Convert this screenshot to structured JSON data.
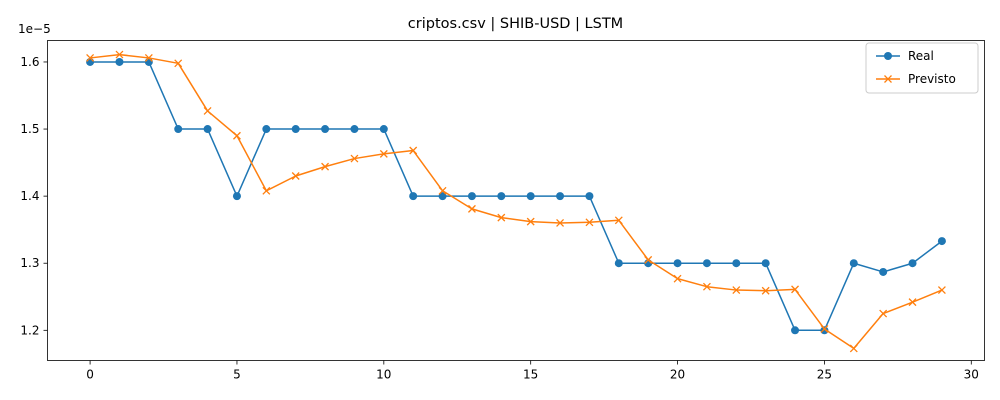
{
  "chart_data": {
    "type": "line",
    "title": "criptos.csv | SHIB-USD | LSTM",
    "xlabel": "",
    "ylabel": "",
    "y_offset_label": "1e−5",
    "xlim": [
      -1.45,
      30.45
    ],
    "ylim": [
      1.155,
      1.632
    ],
    "x_ticks": [
      0,
      5,
      10,
      15,
      20,
      25,
      30
    ],
    "y_ticks": [
      1.2,
      1.3,
      1.4,
      1.5,
      1.6
    ],
    "y_tick_labels": [
      "1.2",
      "1.3",
      "1.4",
      "1.5",
      "1.6"
    ],
    "grid": false,
    "legend_position": "top-right",
    "x": [
      0,
      1,
      2,
      3,
      4,
      5,
      6,
      7,
      8,
      9,
      10,
      11,
      12,
      13,
      14,
      15,
      16,
      17,
      18,
      19,
      20,
      21,
      22,
      23,
      24,
      25,
      26,
      27,
      28,
      29
    ],
    "series": [
      {
        "name": "Real",
        "color": "#1f77b4",
        "marker": "circle",
        "values": [
          1.6,
          1.6,
          1.6,
          1.5,
          1.5,
          1.4,
          1.5,
          1.5,
          1.5,
          1.5,
          1.5,
          1.4,
          1.4,
          1.4,
          1.4,
          1.4,
          1.4,
          1.4,
          1.3,
          1.3,
          1.3,
          1.3,
          1.3,
          1.3,
          1.2,
          1.2,
          1.3,
          1.287,
          1.3,
          1.333
        ]
      },
      {
        "name": "Previsto",
        "color": "#ff7f0e",
        "marker": "x",
        "values": [
          1.606,
          1.611,
          1.606,
          1.598,
          1.527,
          1.49,
          1.408,
          1.43,
          1.444,
          1.456,
          1.463,
          1.468,
          1.408,
          1.381,
          1.368,
          1.362,
          1.36,
          1.361,
          1.364,
          1.305,
          1.277,
          1.265,
          1.26,
          1.259,
          1.261,
          1.202,
          1.173,
          1.225,
          1.242,
          1.26
        ]
      }
    ]
  }
}
